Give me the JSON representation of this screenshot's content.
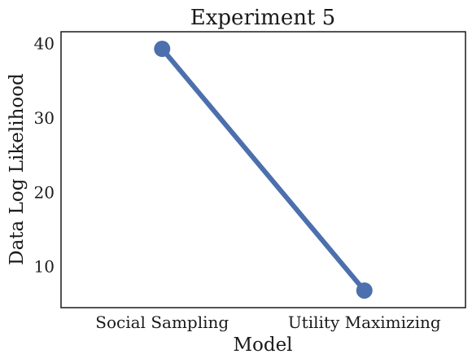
{
  "chart_data": {
    "type": "line",
    "title": "Experiment 5",
    "xlabel": "Model",
    "ylabel": "Data Log Likelihood",
    "categories": [
      "Social Sampling",
      "Utility Maximizing"
    ],
    "series": [
      {
        "values": [
          39.3,
          6.8
        ]
      }
    ],
    "ylim": [
      4.5,
      41.6
    ],
    "yticks": [
      10,
      20,
      30,
      40
    ],
    "grid": false,
    "color": "#4c6fad"
  }
}
